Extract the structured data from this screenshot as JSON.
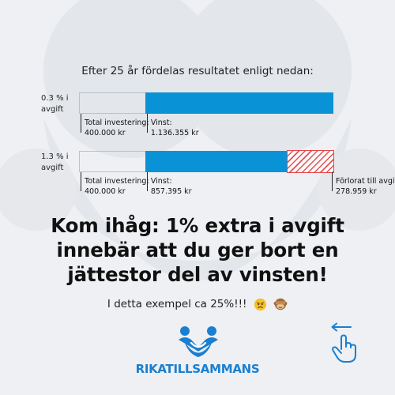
{
  "heading": "Efter 25 år fördelas resultatet enligt nedan:",
  "colors": {
    "investment": "#b5aaa6",
    "profit": "#0a92d6",
    "lost": "#e2454b",
    "brand": "#1a7fd0"
  },
  "chart_data": {
    "type": "bar",
    "orientation": "horizontal-stacked",
    "categories": [
      "0.3 % i avgift",
      "1.3 % i avgift"
    ],
    "series": [
      {
        "key": "investment",
        "values": [
          400000,
          400000
        ],
        "labels": [
          {
            "name": "Total investering:",
            "value": "400.000 kr"
          },
          {
            "name": "Total investering:",
            "value": "400.000 kr"
          }
        ]
      },
      {
        "key": "profit",
        "values": [
          1136355,
          857395
        ],
        "labels": [
          {
            "name": "Vinst:",
            "value": "1.136.355 kr"
          },
          {
            "name": "Vinst:",
            "value": "857.395 kr"
          }
        ]
      },
      {
        "key": "lost",
        "values": [
          0,
          278959
        ],
        "labels": [
          null,
          {
            "name": "Förlorat till avgifter:",
            "value": "278.959 kr"
          }
        ]
      }
    ],
    "total": 1536355
  },
  "headline": "Kom ihåg: 1% extra i avgift innebär att du ger bort en jättestor del av vinsten!",
  "subline": "I detta exempel ca 25%!!!",
  "brand": "RIKATILLSAMMANS",
  "icons": [
    "angry-face-icon",
    "see-no-evil-monkey-icon",
    "logo-icon",
    "swipe-left-hand-icon"
  ]
}
